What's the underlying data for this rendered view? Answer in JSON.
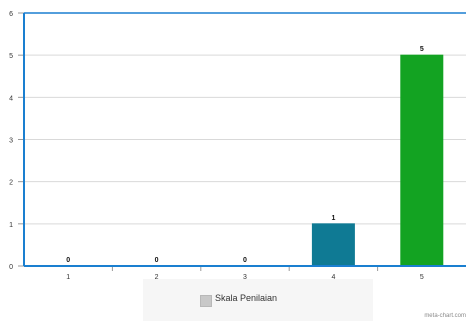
{
  "chart_data": {
    "type": "bar",
    "title": "",
    "xlabel": "",
    "ylabel": "",
    "categories": [
      "1",
      "2",
      "3",
      "4",
      "5"
    ],
    "series": [
      {
        "name": "Skala Penilaian",
        "values": [
          0,
          0,
          0,
          1,
          5
        ],
        "colors": [
          "#0f7a94",
          "#0f7a94",
          "#0f7a94",
          "#0f7a94",
          "#13a322"
        ]
      }
    ],
    "data_labels": [
      "0",
      "0",
      "0",
      "1",
      "5"
    ],
    "ylim": [
      0,
      6
    ],
    "yticks": [
      "0",
      "1",
      "2",
      "3",
      "4",
      "5",
      "6"
    ],
    "grid": true,
    "legend_position": "bottom-center",
    "axis_color": "#1a7fd0"
  },
  "legend": {
    "label": "Skala Penilaian",
    "swatch_color": "#c8c8c8"
  },
  "watermark": "meta-chart.com"
}
